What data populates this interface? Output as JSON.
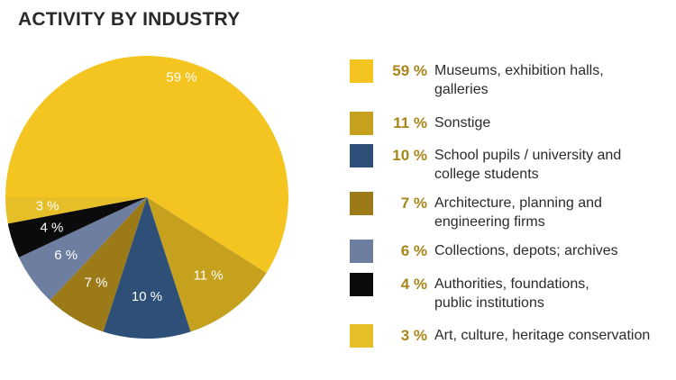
{
  "chart_data": {
    "type": "pie",
    "title": "ACTIVITY BY INDUSTRY",
    "unit": "%",
    "slices": [
      {
        "label": "Museums, exhibition halls, galleries",
        "value": 59,
        "display": "59 %",
        "color": "#f4c520",
        "text_color": "#ffffff"
      },
      {
        "label": "Sonstige",
        "value": 11,
        "display": "11 %",
        "color": "#c6a11e",
        "text_color": "#ffffff"
      },
      {
        "label": "School pupils / university and college students",
        "value": 10,
        "display": "10 %",
        "color": "#2e5078",
        "text_color": "#ffffff"
      },
      {
        "label": "Architecture, planning and engineering firms",
        "value": 7,
        "display": "7 %",
        "color": "#9b7a17",
        "text_color": "#ffffff"
      },
      {
        "label": "Collections, depots; archives",
        "value": 6,
        "display": "6 %",
        "color": "#6d7ea0",
        "text_color": "#ffffff"
      },
      {
        "label": "Authorities, foundations, public institutions",
        "value": 4,
        "display": "4 %",
        "color": "#0b0b0b",
        "text_color": "#ffffff"
      },
      {
        "label": "Art, culture, heritage conservation",
        "value": 3,
        "display": "3 %",
        "color": "#e6be28",
        "text_color": "#ffffff"
      }
    ],
    "legend": [
      {
        "display": "59 %",
        "text": "Museums, exhibition halls,\ngalleries",
        "color": "#f4c520"
      },
      {
        "display": "11 %",
        "text": "Sonstige",
        "color": "#c6a11e"
      },
      {
        "display": "10 %",
        "text": "School pupils / university and\ncollege students",
        "color": "#2e5078"
      },
      {
        "display": "7 %",
        "text": "Architecture, planning and\nengineering firms",
        "color": "#9b7a17"
      },
      {
        "display": "6 %",
        "text": "Collections, depots; archives",
        "color": "#6d7ea0"
      },
      {
        "display": "4 %",
        "text": "Authorities, foundations,\npublic institutions",
        "color": "#0b0b0b"
      },
      {
        "display": "3 %",
        "text": "Art, culture, heritage conservation",
        "color": "#e6be28"
      }
    ],
    "legend_placement": "right",
    "start_angle_deg": 180,
    "direction": "clockwise"
  }
}
